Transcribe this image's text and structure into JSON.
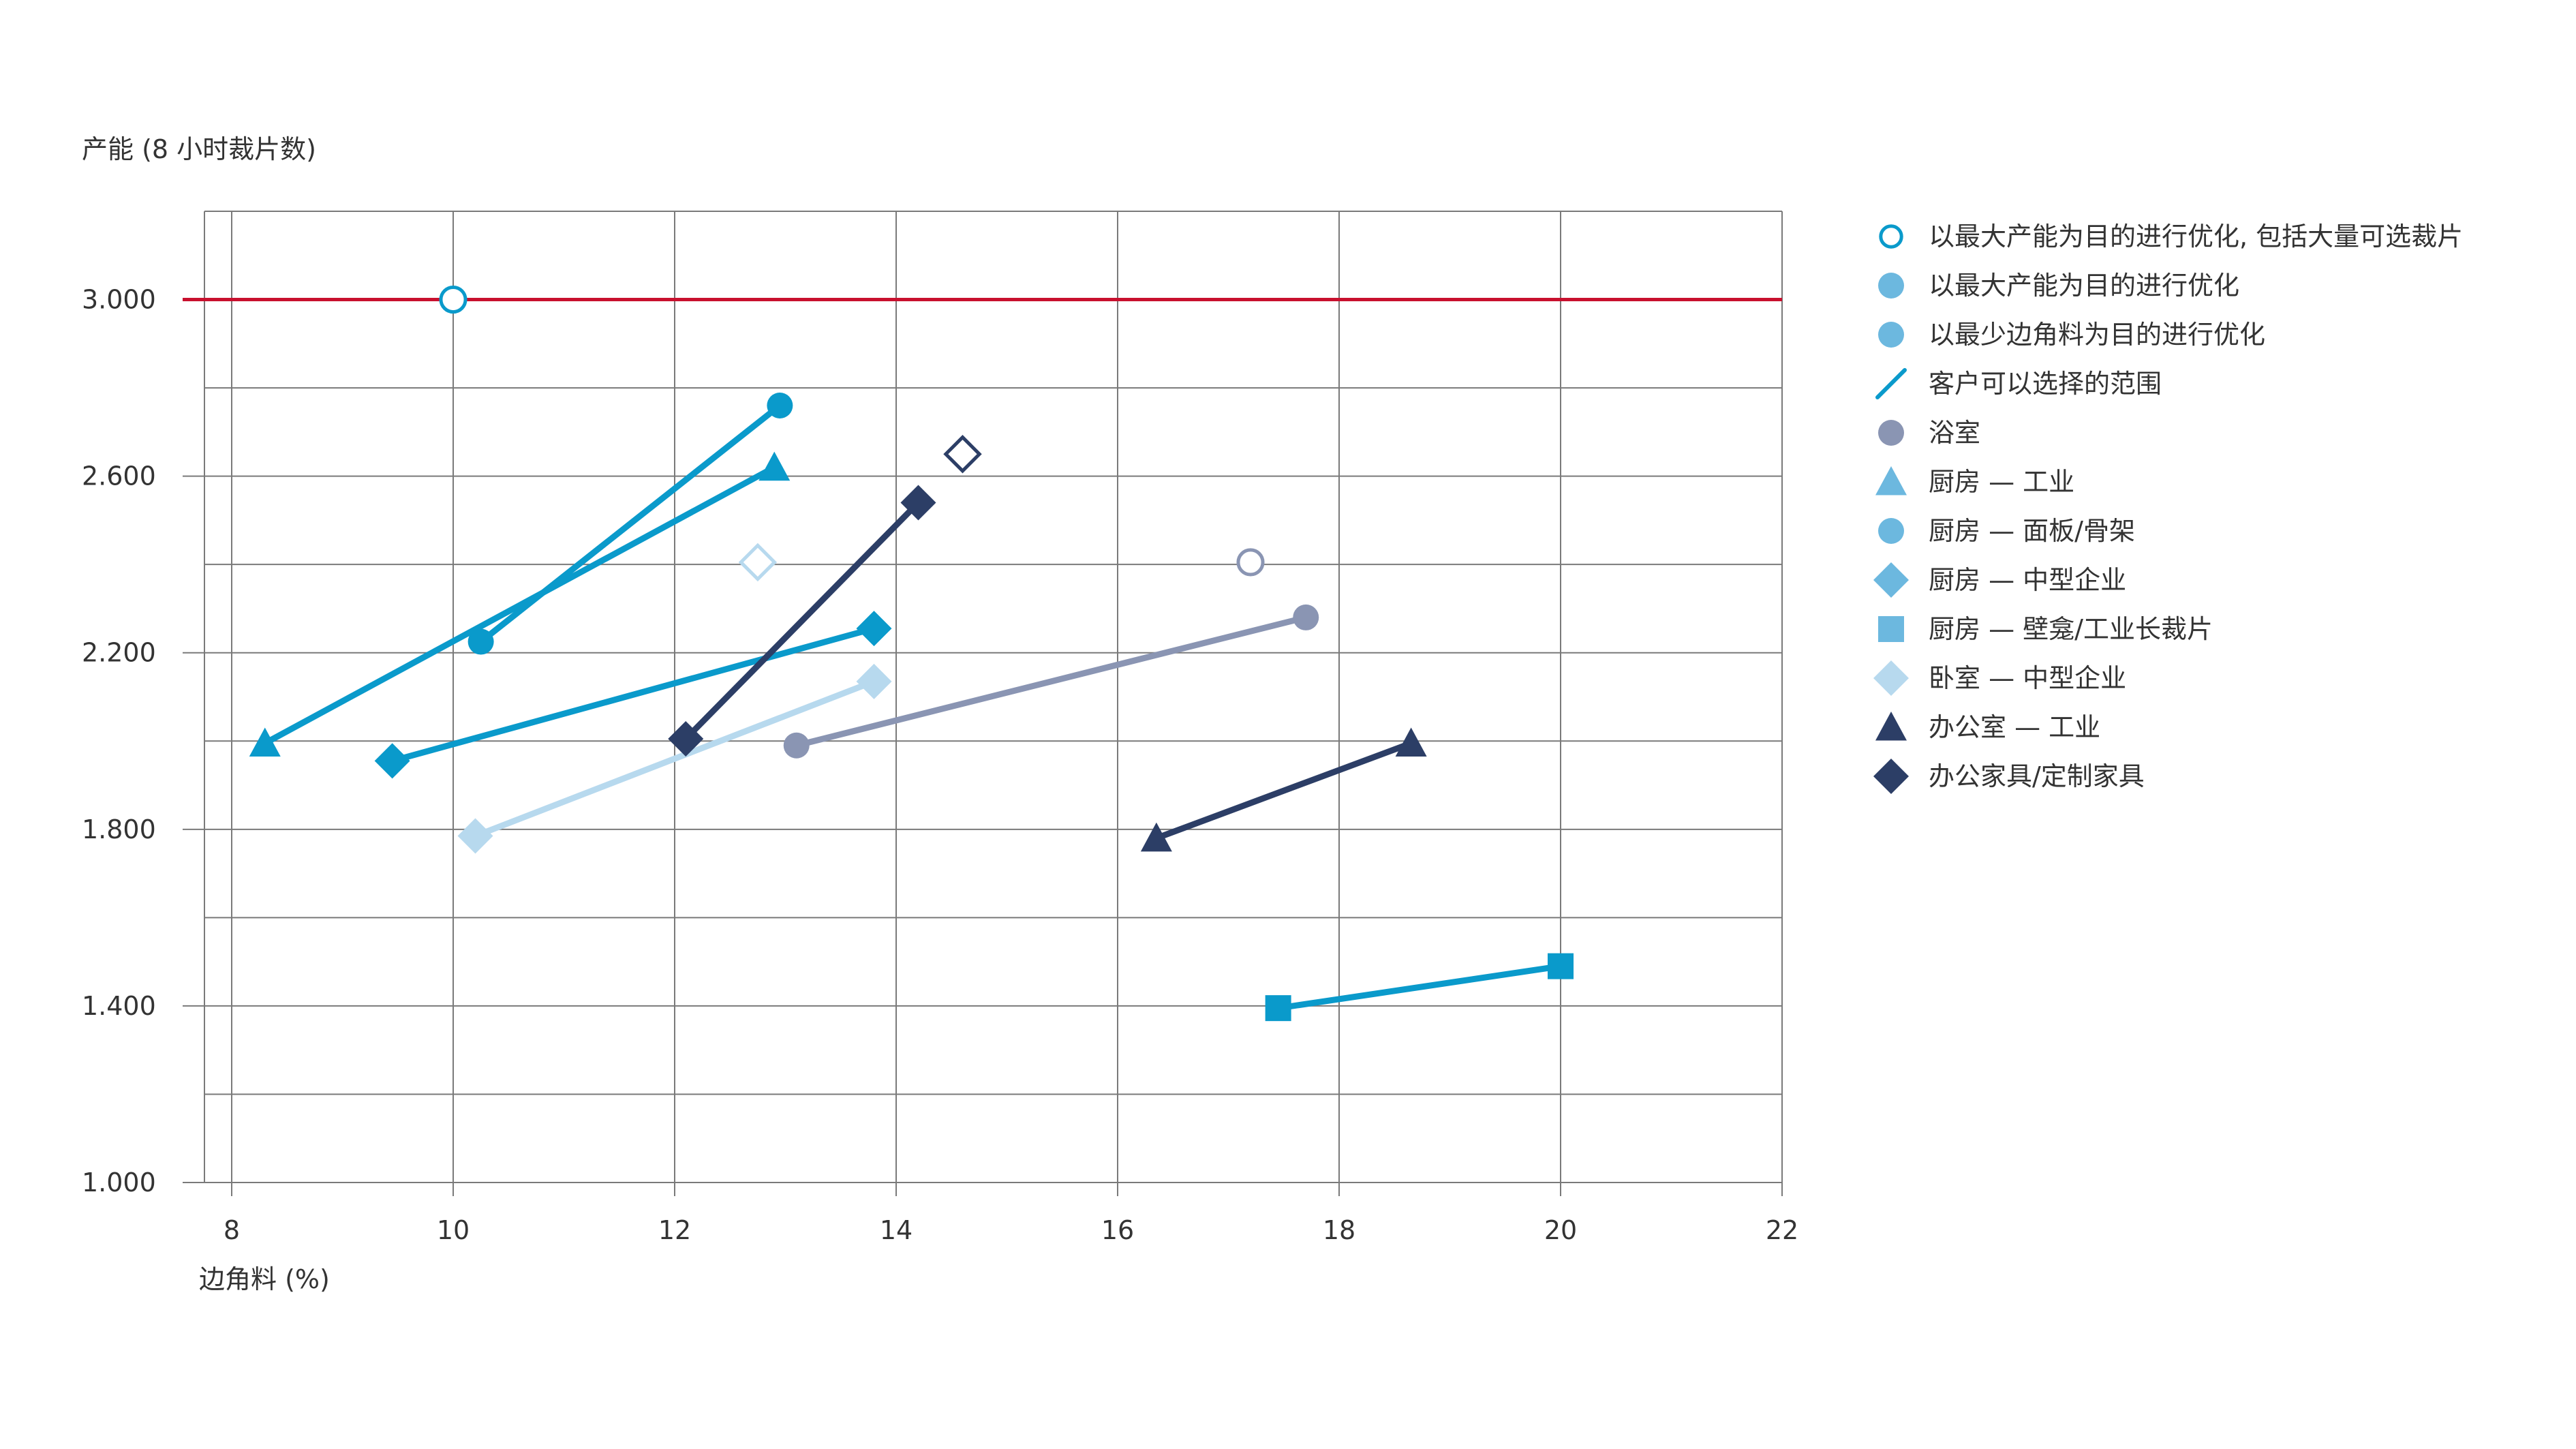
{
  "chart_data": {
    "type": "line",
    "title": "",
    "ylabel": "产能 (8 小时裁片数)",
    "xlabel": "边角料 (%)",
    "xlim": [
      8,
      22
    ],
    "ylim": [
      1000,
      3200
    ],
    "xticks": [
      8,
      10,
      12,
      14,
      16,
      18,
      20,
      22
    ],
    "xtick_labels": [
      "8",
      "10",
      "12",
      "14",
      "16",
      "18",
      "20",
      "22"
    ],
    "yticks": [
      1000,
      1400,
      1800,
      2200,
      2600,
      3000
    ],
    "ytick_labels": [
      "1.000",
      "1.400",
      "1.800",
      "2.200",
      "2.600",
      "3.000"
    ],
    "grid": true,
    "legend_position": "right",
    "reference_line": {
      "y": 3000,
      "color": "#c8102e"
    },
    "colors": {
      "accent": "#0a9acb",
      "light_blue": "#6cb8df",
      "pale_blue": "#b7d9ee",
      "navy": "#2c3e66",
      "gray": "#8a95b3",
      "red_line": "#c8102e",
      "grid": "#7a7a7a"
    },
    "series": [
      {
        "name": "浴室",
        "marker": "circle",
        "color": "#8a95b3",
        "points": [
          [
            13.1,
            1990
          ],
          [
            17.7,
            2280
          ]
        ]
      },
      {
        "name": "厨房 — 工业",
        "marker": "triangle",
        "color": "#0a9acb",
        "points": [
          [
            8.3,
            1995
          ],
          [
            12.9,
            2620
          ]
        ]
      },
      {
        "name": "厨房 — 面板/骨架",
        "marker": "circle",
        "color": "#0a9acb",
        "points": [
          [
            10.25,
            2225
          ],
          [
            12.95,
            2760
          ]
        ]
      },
      {
        "name": "厨房 — 中型企业",
        "marker": "diamond",
        "color": "#0a9acb",
        "points": [
          [
            9.45,
            1955
          ],
          [
            13.8,
            2255
          ]
        ]
      },
      {
        "name": "厨房 — 壁龛/工业长裁片",
        "marker": "square",
        "color": "#0a9acb",
        "points": [
          [
            17.45,
            1395
          ],
          [
            20.0,
            1490
          ]
        ]
      },
      {
        "name": "卧室 — 中型企业",
        "marker": "diamond",
        "color": "#b7d9ee",
        "points": [
          [
            10.2,
            1785
          ],
          [
            13.8,
            2135
          ]
        ]
      },
      {
        "name": "办公室 — 工业",
        "marker": "triangle",
        "color": "#2c3e66",
        "points": [
          [
            16.35,
            1780
          ],
          [
            18.65,
            1995
          ]
        ]
      },
      {
        "name": "办公家具/定制家具",
        "marker": "diamond",
        "color": "#2c3e66",
        "points": [
          [
            12.1,
            2005
          ],
          [
            14.2,
            2540
          ]
        ]
      }
    ],
    "open_markers": [
      {
        "marker": "circle",
        "color": "#0a9acb",
        "x": 10.0,
        "y": 3000
      },
      {
        "marker": "diamond",
        "color": "#b7d9ee",
        "x": 12.75,
        "y": 2405
      },
      {
        "marker": "diamond",
        "color": "#2c3e66",
        "x": 14.6,
        "y": 2650
      },
      {
        "marker": "circle",
        "color": "#8a95b3",
        "x": 17.2,
        "y": 2405
      }
    ],
    "legend": [
      {
        "label": "以最大产能为目的进行优化, 包括大量可选裁片",
        "marker": "open-circle",
        "color": "#0a9acb"
      },
      {
        "label": "以最大产能为目的进行优化",
        "marker": "circle",
        "color": "#6cb8df"
      },
      {
        "label": "以最少边角料为目的进行优化",
        "marker": "circle",
        "color": "#6cb8df"
      },
      {
        "label": "客户可以选择的范围",
        "marker": "slash",
        "color": "#0a9acb"
      },
      {
        "label": "浴室",
        "marker": "circle",
        "color": "#8a95b3"
      },
      {
        "label": "厨房 — 工业",
        "marker": "triangle",
        "color": "#6cb8df"
      },
      {
        "label": "厨房 — 面板/骨架",
        "marker": "circle",
        "color": "#6cb8df"
      },
      {
        "label": "厨房 — 中型企业",
        "marker": "diamond",
        "color": "#6cb8df"
      },
      {
        "label": "厨房 — 壁龛/工业长裁片",
        "marker": "square",
        "color": "#6cb8df"
      },
      {
        "label": "卧室 — 中型企业",
        "marker": "diamond",
        "color": "#b7d9ee"
      },
      {
        "label": "办公室 — 工业",
        "marker": "triangle",
        "color": "#2c3e66"
      },
      {
        "label": "办公家具/定制家具",
        "marker": "diamond",
        "color": "#2c3e66"
      }
    ]
  }
}
